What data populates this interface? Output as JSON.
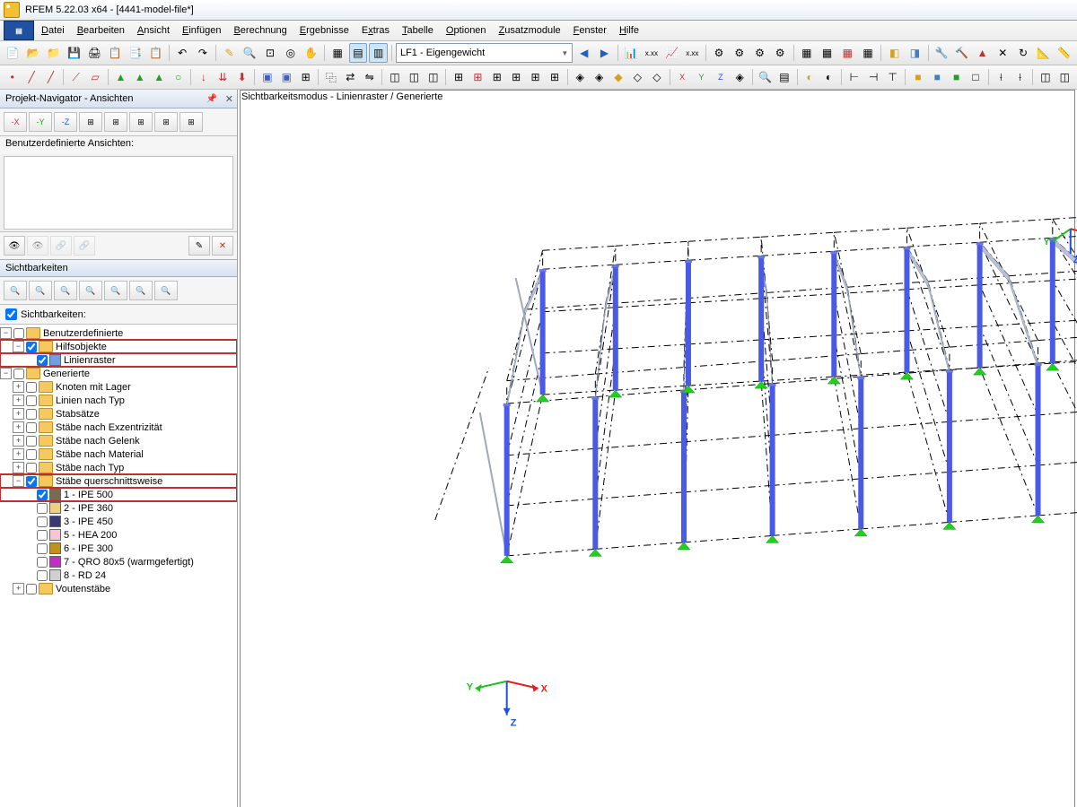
{
  "window": {
    "title": "RFEM 5.22.03 x64 - [4441-model-file*]"
  },
  "menu": {
    "items": [
      "Datei",
      "Bearbeiten",
      "Ansicht",
      "Einfügen",
      "Berechnung",
      "Ergebnisse",
      "Extras",
      "Tabelle",
      "Optionen",
      "Zusatzmodule",
      "Fenster",
      "Hilfe"
    ]
  },
  "loadcase": {
    "label": "LF1 - Eigengewicht"
  },
  "navigator": {
    "title": "Projekt-Navigator - Ansichten",
    "userviews_label": "Benutzerdefinierte Ansichten:",
    "visibilities_header": "Sichtbarkeiten",
    "visibilities_check": "Sichtbarkeiten:"
  },
  "tree": {
    "n0": {
      "label": "Benutzerdefinierte"
    },
    "n1": {
      "label": "Hilfsobjekte"
    },
    "n2": {
      "label": "Linienraster"
    },
    "n3": {
      "label": "Generierte"
    },
    "n4": {
      "label": "Knoten mit Lager"
    },
    "n5": {
      "label": "Linien nach Typ"
    },
    "n6": {
      "label": "Stabsätze"
    },
    "n7": {
      "label": "Stäbe nach Exzentrizität"
    },
    "n8": {
      "label": "Stäbe nach Gelenk"
    },
    "n9": {
      "label": "Stäbe nach Material"
    },
    "n10": {
      "label": "Stäbe nach Typ"
    },
    "n11": {
      "label": "Stäbe querschnittsweise"
    },
    "n12": {
      "label": "1 - IPE 500"
    },
    "n13": {
      "label": "2 - IPE 360"
    },
    "n14": {
      "label": "3 - IPE 450"
    },
    "n15": {
      "label": "5 - HEA 200"
    },
    "n16": {
      "label": "6 - IPE 300"
    },
    "n17": {
      "label": "7 - QRO 80x5 (warmgefertigt)"
    },
    "n18": {
      "label": "8 - RD 24"
    },
    "n19": {
      "label": "Voutenstäbe"
    }
  },
  "swatches": {
    "s2": "#6f9fe0",
    "s12": "#7a6a50",
    "s13": "#f0d080",
    "s14": "#3a3a70",
    "s15": "#f6c7d3",
    "s16": "#c09020",
    "s17": "#c030c0",
    "s18": "#d0d0d0"
  },
  "viewport": {
    "title": "Sichtbarkeitsmodus - Linienraster / Generierte"
  },
  "colors": {
    "column": "#4a5ae5",
    "beam": "#b8c0d8",
    "support": "#20d020",
    "grid_dash": "#000000",
    "axis_x": "#e02020",
    "axis_y": "#20c020",
    "axis_z": "#2050e0"
  },
  "model": {
    "nBaysX": 8,
    "topY": 150,
    "bottomY": 520,
    "leftXfront": 300,
    "rightXfront": 1090,
    "leftXback": 380,
    "rightXback": 1040,
    "leftXbackRow": 340,
    "rightXbackRow": 990,
    "colHeightFront": 170,
    "colHeightBack": 140,
    "ridgeRise": 30
  }
}
